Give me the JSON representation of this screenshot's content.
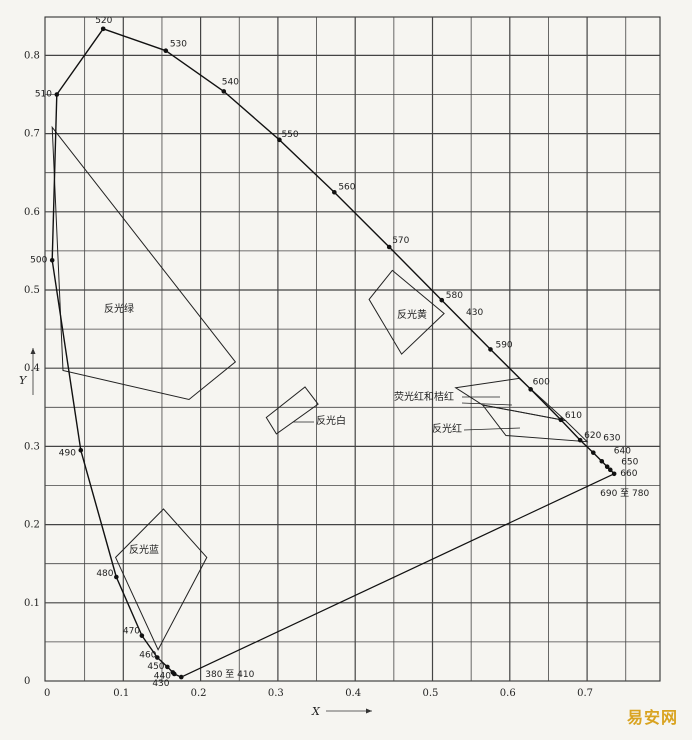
{
  "chart_data": {
    "type": "scatter",
    "xlabel": "X",
    "ylabel": "Y",
    "xlim": [
      0,
      0.78
    ],
    "ylim": [
      0,
      0.86
    ],
    "grid": true,
    "x_ticks": [
      "0",
      "0.1",
      "0.2",
      "0.3",
      "0.4",
      "0.5",
      "0.6",
      "0.7"
    ],
    "y_ticks": [
      "0",
      "0.1",
      "0.2",
      "0.3",
      "0.4",
      "0.5",
      "0.6",
      "0.7",
      "0.8"
    ],
    "spectral_locus": [
      {
        "label": "380 至 410",
        "x": 0.175,
        "y": 0.005
      },
      {
        "label": "430",
        "x": 0.166,
        "y": 0.009
      },
      {
        "label": "440",
        "x": 0.164,
        "y": 0.011
      },
      {
        "label": "450",
        "x": 0.157,
        "y": 0.018
      },
      {
        "label": "460",
        "x": 0.144,
        "y": 0.03
      },
      {
        "label": "470",
        "x": 0.124,
        "y": 0.058
      },
      {
        "label": "480",
        "x": 0.091,
        "y": 0.133
      },
      {
        "label": "490",
        "x": 0.045,
        "y": 0.295
      },
      {
        "label": "500",
        "x": 0.008,
        "y": 0.538
      },
      {
        "label": "510",
        "x": 0.014,
        "y": 0.75
      },
      {
        "label": "520",
        "x": 0.074,
        "y": 0.834
      },
      {
        "label": "530",
        "x": 0.155,
        "y": 0.806
      },
      {
        "label": "540",
        "x": 0.23,
        "y": 0.754
      },
      {
        "label": "550",
        "x": 0.302,
        "y": 0.692
      },
      {
        "label": "560",
        "x": 0.373,
        "y": 0.625
      },
      {
        "label": "570",
        "x": 0.444,
        "y": 0.555
      },
      {
        "label": "580",
        "x": 0.512,
        "y": 0.487
      },
      {
        "label": "590",
        "x": 0.575,
        "y": 0.424
      },
      {
        "label": "600",
        "x": 0.627,
        "y": 0.373
      },
      {
        "label": "610",
        "x": 0.666,
        "y": 0.334
      },
      {
        "label": "620",
        "x": 0.691,
        "y": 0.308
      },
      {
        "label": "630",
        "x": 0.708,
        "y": 0.292
      },
      {
        "label": "640",
        "x": 0.719,
        "y": 0.281
      },
      {
        "label": "650",
        "x": 0.726,
        "y": 0.274
      },
      {
        "label": "660",
        "x": 0.73,
        "y": 0.27
      },
      {
        "label": "690 至 780",
        "x": 0.735,
        "y": 0.265
      }
    ],
    "extra_locus_label": "430",
    "regions": [
      {
        "label": "反光绿",
        "polygon": [
          [
            0.008,
            0.708
          ],
          [
            0.245,
            0.408
          ],
          [
            0.185,
            0.36
          ],
          [
            0.022,
            0.397
          ]
        ]
      },
      {
        "label": "反光蓝",
        "polygon": [
          [
            0.09,
            0.158
          ],
          [
            0.152,
            0.22
          ],
          [
            0.208,
            0.158
          ],
          [
            0.145,
            0.04
          ]
        ]
      },
      {
        "label": "反光白",
        "polygon": [
          [
            0.285,
            0.337
          ],
          [
            0.335,
            0.376
          ],
          [
            0.352,
            0.354
          ],
          [
            0.298,
            0.316
          ]
        ]
      },
      {
        "label": "反光黄",
        "polygon": [
          [
            0.448,
            0.525
          ],
          [
            0.515,
            0.47
          ],
          [
            0.46,
            0.418
          ],
          [
            0.418,
            0.488
          ]
        ]
      },
      {
        "label": "荧光红和桔红",
        "polygon": [
          [
            0.53,
            0.375
          ],
          [
            0.612,
            0.387
          ],
          [
            0.672,
            0.333
          ],
          [
            0.565,
            0.353
          ]
        ]
      },
      {
        "label": "反光红",
        "polygon": [
          [
            0.565,
            0.353
          ],
          [
            0.672,
            0.333
          ],
          [
            0.7,
            0.306
          ],
          [
            0.595,
            0.314
          ]
        ]
      }
    ],
    "annotations": [
      {
        "text": "反光绿"
      },
      {
        "text": "反光蓝"
      },
      {
        "text": "反光白"
      },
      {
        "text": "反光黄"
      },
      {
        "text": "荧光红和桔红"
      },
      {
        "text": "反光红"
      }
    ]
  },
  "watermark": "易安网"
}
